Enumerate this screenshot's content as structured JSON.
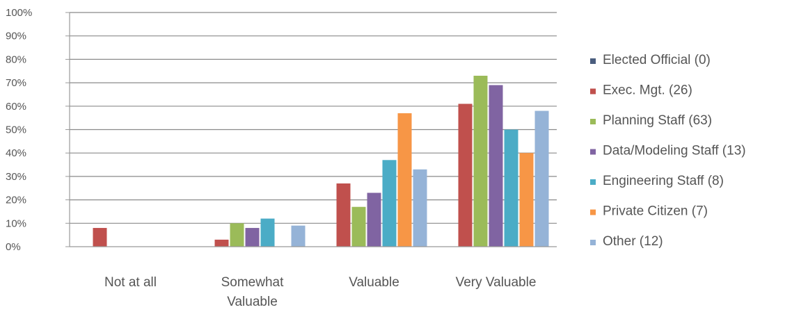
{
  "chart_data": {
    "type": "bar",
    "title": "",
    "xlabel": "",
    "ylabel": "",
    "ylim": [
      0,
      100
    ],
    "y_ticks": [
      "0%",
      "10%",
      "20%",
      "30%",
      "40%",
      "50%",
      "60%",
      "70%",
      "80%",
      "90%",
      "100%"
    ],
    "grid": true,
    "legend_position": "right",
    "categories": [
      "Not at all",
      "Somewhat Valuable",
      "Valuable",
      "Very Valuable"
    ],
    "series": [
      {
        "name": "Elected Official (0)",
        "color": "#4a5d7e",
        "values": [
          0,
          0,
          0,
          0
        ]
      },
      {
        "name": "Exec. Mgt. (26)",
        "color": "#c0504d",
        "values": [
          8,
          3,
          27,
          61
        ]
      },
      {
        "name": "Planning Staff (63)",
        "color": "#9bbb59",
        "values": [
          0,
          10,
          17,
          73
        ]
      },
      {
        "name": "Data/Modeling Staff (13)",
        "color": "#8064a2",
        "values": [
          0,
          8,
          23,
          69
        ]
      },
      {
        "name": "Engineering Staff (8)",
        "color": "#4bacc6",
        "values": [
          0,
          12,
          37,
          50
        ]
      },
      {
        "name": "Private Citizen (7)",
        "color": "#f79646",
        "values": [
          0,
          0,
          57,
          40
        ]
      },
      {
        "name": "Other (12)",
        "color": "#95b3d7",
        "values": [
          0,
          9,
          33,
          58
        ]
      }
    ]
  }
}
